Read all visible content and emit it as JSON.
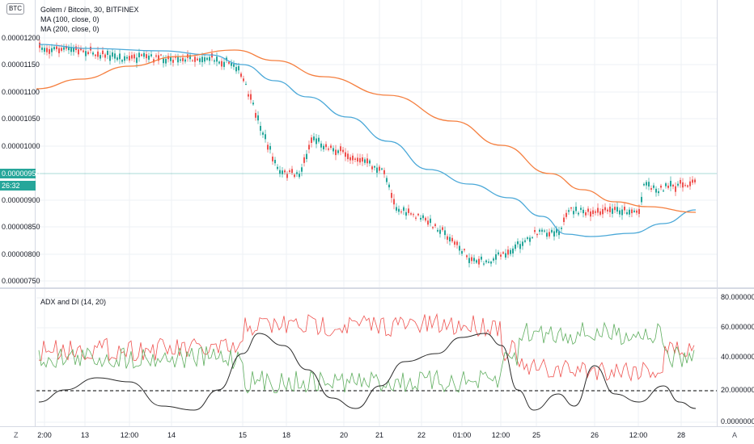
{
  "symbol": {
    "badge": "BTC",
    "title": "Golem / Bitcoin, 30, BITFINEX",
    "indicators": [
      "MA (100, close, 0)",
      "MA (200, close, 0)"
    ]
  },
  "price_axis": {
    "ticks": [
      "0.00001200",
      "0.00001150",
      "0.00001100",
      "0.00001050",
      "0.00001000",
      "0.00000900",
      "0.00000850",
      "0.00000800",
      "0.00000750"
    ],
    "current_price": "0.00000950",
    "countdown": "26:32"
  },
  "oscillator": {
    "title": "ADX and DI (14, 20)",
    "ticks": [
      "80.00000000",
      "60.00000000",
      "40.00000000",
      "20.00000000",
      "0.00000000"
    ]
  },
  "time_axis": {
    "ticks": [
      "2:00",
      "13",
      "12:00",
      "14",
      "15",
      "18",
      "20",
      "21",
      "22",
      "01:00",
      "12:00",
      "25",
      "26",
      "12:00",
      "28"
    ],
    "left_corner": "Z",
    "right_corner": "A"
  },
  "colors": {
    "up": "#26a69a",
    "down": "#ef5350",
    "ma100": "#4aa8d8",
    "ma200": "#f57f3f",
    "adx": "#2b2b2b",
    "di_plus": "#5fae5f",
    "di_minus": "#ef5350",
    "grid": "#eef0f4"
  }
}
